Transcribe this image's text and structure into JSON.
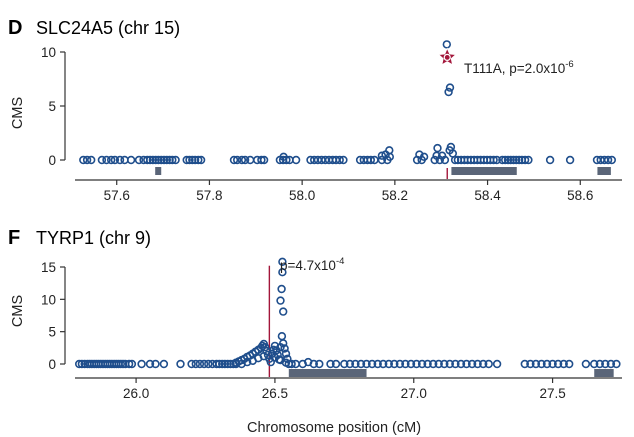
{
  "colors": {
    "point": "#1f4e8c",
    "gene_bar": "#5a6578",
    "highlight_marker": "#a3163a",
    "text": "#222222"
  },
  "chart_data": [
    {
      "type": "scatter",
      "panel_letter": "D",
      "title": "SLC24A5 (chr 15)",
      "xlabel": "",
      "ylabel": "CMS",
      "xlim": [
        57.51,
        58.69
      ],
      "ylim": [
        0,
        11
      ],
      "x_ticks": [
        57.6,
        57.8,
        58.0,
        58.2,
        58.4,
        58.6
      ],
      "x_tick_labels": [
        "57.6",
        "57.8",
        "58.0",
        "58.2",
        "58.4",
        "58.6"
      ],
      "y_ticks": [
        0,
        5,
        10
      ],
      "y_tick_labels": [
        "0",
        "5",
        "10"
      ],
      "grid": false,
      "highlight": {
        "x": 58.313,
        "y": 9.5,
        "label": "T111A, p=2.0x10",
        "label_exp": "-6",
        "marker": "star"
      },
      "vline": {
        "x": 58.313
      },
      "gene_bars": [
        [
          57.683,
          57.696
        ],
        [
          58.322,
          58.463
        ],
        [
          58.637,
          58.666
        ]
      ],
      "points": [
        [
          57.528,
          0
        ],
        [
          57.536,
          0
        ],
        [
          57.545,
          0
        ],
        [
          57.568,
          0
        ],
        [
          57.578,
          0
        ],
        [
          57.588,
          0
        ],
        [
          57.596,
          0
        ],
        [
          57.607,
          0
        ],
        [
          57.617,
          0
        ],
        [
          57.631,
          0
        ],
        [
          57.648,
          0
        ],
        [
          57.658,
          0
        ],
        [
          57.666,
          0
        ],
        [
          57.672,
          0
        ],
        [
          57.678,
          0
        ],
        [
          57.684,
          0
        ],
        [
          57.69,
          0
        ],
        [
          57.696,
          0
        ],
        [
          57.702,
          0
        ],
        [
          57.708,
          0
        ],
        [
          57.714,
          0
        ],
        [
          57.72,
          0
        ],
        [
          57.727,
          0
        ],
        [
          57.751,
          0
        ],
        [
          57.757,
          0
        ],
        [
          57.763,
          0
        ],
        [
          57.769,
          0
        ],
        [
          57.776,
          0
        ],
        [
          57.782,
          0
        ],
        [
          57.853,
          0
        ],
        [
          57.86,
          0
        ],
        [
          57.87,
          0
        ],
        [
          57.877,
          0
        ],
        [
          57.888,
          0
        ],
        [
          57.903,
          0
        ],
        [
          57.912,
          0
        ],
        [
          57.918,
          0
        ],
        [
          57.952,
          0
        ],
        [
          57.959,
          0
        ],
        [
          57.966,
          0
        ],
        [
          57.96,
          0.3
        ],
        [
          57.973,
          0
        ],
        [
          57.987,
          0
        ],
        [
          58.018,
          0
        ],
        [
          58.026,
          0
        ],
        [
          58.034,
          0
        ],
        [
          58.042,
          0
        ],
        [
          58.05,
          0
        ],
        [
          58.058,
          0
        ],
        [
          58.066,
          0
        ],
        [
          58.073,
          0
        ],
        [
          58.081,
          0
        ],
        [
          58.089,
          0
        ],
        [
          58.125,
          0
        ],
        [
          58.133,
          0
        ],
        [
          58.141,
          0
        ],
        [
          58.148,
          0
        ],
        [
          58.156,
          0
        ],
        [
          58.172,
          0
        ],
        [
          58.172,
          0.4
        ],
        [
          58.184,
          0
        ],
        [
          58.18,
          0.5
        ],
        [
          58.189,
          0.3
        ],
        [
          58.188,
          0.9
        ],
        [
          58.248,
          0
        ],
        [
          58.253,
          0.5
        ],
        [
          58.258,
          0
        ],
        [
          58.263,
          0.3
        ],
        [
          58.286,
          0
        ],
        [
          58.29,
          0.4
        ],
        [
          58.292,
          1.1
        ],
        [
          58.297,
          0
        ],
        [
          58.302,
          0.4
        ],
        [
          58.308,
          0
        ],
        [
          58.312,
          10.7
        ],
        [
          58.316,
          6.3
        ],
        [
          58.319,
          6.7
        ],
        [
          58.318,
          0.9
        ],
        [
          58.321,
          1.2
        ],
        [
          58.325,
          0.6
        ],
        [
          58.33,
          0
        ],
        [
          58.336,
          0
        ],
        [
          58.343,
          0
        ],
        [
          58.35,
          0
        ],
        [
          58.357,
          0
        ],
        [
          58.364,
          0
        ],
        [
          58.371,
          0
        ],
        [
          58.378,
          0
        ],
        [
          58.385,
          0
        ],
        [
          58.392,
          0
        ],
        [
          58.399,
          0
        ],
        [
          58.406,
          0
        ],
        [
          58.413,
          0
        ],
        [
          58.42,
          0
        ],
        [
          58.432,
          0
        ],
        [
          58.438,
          0
        ],
        [
          58.444,
          0
        ],
        [
          58.45,
          0
        ],
        [
          58.456,
          0
        ],
        [
          58.462,
          0
        ],
        [
          58.468,
          0
        ],
        [
          58.474,
          0
        ],
        [
          58.481,
          0
        ],
        [
          58.488,
          0
        ],
        [
          58.535,
          0
        ],
        [
          58.578,
          0
        ],
        [
          58.636,
          0
        ],
        [
          58.644,
          0
        ],
        [
          58.652,
          0
        ],
        [
          58.66,
          0
        ],
        [
          58.668,
          0
        ]
      ]
    },
    {
      "type": "scatter",
      "panel_letter": "F",
      "title": "TYRP1 (chr 9)",
      "xlabel": "Chromosome position (cM)",
      "ylabel": "CMS",
      "xlim": [
        25.78,
        27.75
      ],
      "ylim": [
        -0.6,
        16
      ],
      "x_ticks": [
        26.0,
        26.5,
        27.0,
        27.5
      ],
      "x_tick_labels": [
        "26.0",
        "26.5",
        "27.0",
        "27.5"
      ],
      "y_ticks": [
        0,
        5,
        10,
        15
      ],
      "y_tick_labels": [
        "0",
        "5",
        "10",
        "15"
      ],
      "grid": false,
      "vline": {
        "x": 26.48,
        "y_top": 15.2
      },
      "annotation": {
        "label": "p=4.7x10",
        "label_exp": "-4"
      },
      "gene_bars": [
        [
          26.55,
          26.83
        ],
        [
          27.65,
          27.72
        ]
      ],
      "points": [
        [
          25.795,
          0
        ],
        [
          25.805,
          0
        ],
        [
          25.815,
          0
        ],
        [
          25.825,
          0
        ],
        [
          25.833,
          0
        ],
        [
          25.841,
          0
        ],
        [
          25.849,
          0
        ],
        [
          25.857,
          0
        ],
        [
          25.865,
          0
        ],
        [
          25.873,
          0
        ],
        [
          25.881,
          0
        ],
        [
          25.889,
          0
        ],
        [
          25.897,
          0
        ],
        [
          25.905,
          0
        ],
        [
          25.913,
          0
        ],
        [
          25.921,
          0
        ],
        [
          25.929,
          0
        ],
        [
          25.937,
          0
        ],
        [
          25.945,
          0
        ],
        [
          25.953,
          0
        ],
        [
          25.961,
          0
        ],
        [
          25.975,
          0
        ],
        [
          25.985,
          0
        ],
        [
          26.02,
          0
        ],
        [
          26.05,
          0
        ],
        [
          26.07,
          0
        ],
        [
          26.1,
          0
        ],
        [
          26.16,
          0
        ],
        [
          26.2,
          0
        ],
        [
          26.215,
          0
        ],
        [
          26.23,
          0
        ],
        [
          26.245,
          0
        ],
        [
          26.26,
          0
        ],
        [
          26.275,
          0
        ],
        [
          26.29,
          0
        ],
        [
          26.3,
          0
        ],
        [
          26.31,
          0
        ],
        [
          26.32,
          0
        ],
        [
          26.33,
          0
        ],
        [
          26.34,
          0
        ],
        [
          26.35,
          0
        ],
        [
          26.36,
          0.2
        ],
        [
          26.37,
          0.4
        ],
        [
          26.38,
          0.6
        ],
        [
          26.39,
          0.8
        ],
        [
          26.4,
          1.1
        ],
        [
          26.41,
          1.3
        ],
        [
          26.42,
          1.6
        ],
        [
          26.43,
          1.9
        ],
        [
          26.44,
          2.2
        ],
        [
          26.45,
          2.5
        ],
        [
          26.455,
          2.8
        ],
        [
          26.46,
          3.1
        ],
        [
          26.465,
          2.6
        ],
        [
          26.47,
          2.0
        ],
        [
          26.475,
          1.4
        ],
        [
          26.48,
          0.8
        ],
        [
          26.485,
          0.3
        ],
        [
          26.49,
          1.6
        ],
        [
          26.495,
          2.2
        ],
        [
          26.5,
          2.8
        ],
        [
          26.505,
          2.1
        ],
        [
          26.51,
          1.4
        ],
        [
          26.515,
          0.7
        ],
        [
          26.52,
          2.6
        ],
        [
          26.525,
          4.3
        ],
        [
          26.53,
          3.2
        ],
        [
          26.535,
          2.4
        ],
        [
          26.54,
          1.6
        ],
        [
          26.545,
          0.8
        ],
        [
          26.36,
          0
        ],
        [
          26.38,
          0
        ],
        [
          26.4,
          0.3
        ],
        [
          26.42,
          0.5
        ],
        [
          26.44,
          0.9
        ],
        [
          26.46,
          1.2
        ],
        [
          26.5,
          1.0
        ],
        [
          26.52,
          0.6
        ],
        [
          26.54,
          0.2
        ],
        [
          26.55,
          0
        ],
        [
          26.527,
          15.8
        ],
        [
          26.527,
          14.2
        ],
        [
          26.524,
          11.6
        ],
        [
          26.52,
          9.8
        ],
        [
          26.53,
          8.1
        ],
        [
          26.56,
          0
        ],
        [
          26.575,
          0
        ],
        [
          26.6,
          0
        ],
        [
          26.62,
          0.3
        ],
        [
          26.64,
          0
        ],
        [
          26.66,
          0
        ],
        [
          26.7,
          0
        ],
        [
          26.72,
          0
        ],
        [
          26.75,
          0
        ],
        [
          26.77,
          0
        ],
        [
          26.79,
          0
        ],
        [
          26.81,
          0
        ],
        [
          26.83,
          0
        ],
        [
          26.85,
          0
        ],
        [
          26.87,
          0
        ],
        [
          26.89,
          0
        ],
        [
          26.91,
          0
        ],
        [
          26.93,
          0
        ],
        [
          26.95,
          0
        ],
        [
          26.97,
          0
        ],
        [
          26.99,
          0
        ],
        [
          27.01,
          0
        ],
        [
          27.03,
          0
        ],
        [
          27.05,
          0
        ],
        [
          27.07,
          0
        ],
        [
          27.09,
          0
        ],
        [
          27.11,
          0
        ],
        [
          27.13,
          0
        ],
        [
          27.15,
          0
        ],
        [
          27.17,
          0
        ],
        [
          27.19,
          0
        ],
        [
          27.21,
          0
        ],
        [
          27.23,
          0
        ],
        [
          27.25,
          0
        ],
        [
          27.27,
          0
        ],
        [
          27.3,
          0
        ],
        [
          27.4,
          0
        ],
        [
          27.42,
          0
        ],
        [
          27.44,
          0
        ],
        [
          27.46,
          0
        ],
        [
          27.48,
          0
        ],
        [
          27.5,
          0
        ],
        [
          27.52,
          0
        ],
        [
          27.54,
          0
        ],
        [
          27.56,
          0
        ],
        [
          27.62,
          0
        ],
        [
          27.65,
          0
        ],
        [
          27.67,
          0
        ],
        [
          27.69,
          0
        ],
        [
          27.71,
          0
        ],
        [
          27.73,
          0
        ]
      ]
    }
  ]
}
